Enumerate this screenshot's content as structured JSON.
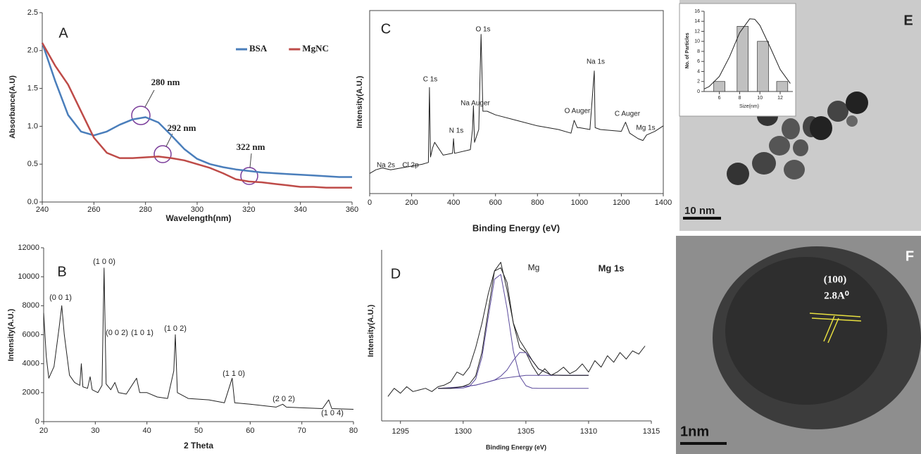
{
  "chart_data": [
    {
      "type": "line",
      "label": "A",
      "xlabel": "Wavelength(nm)",
      "ylabel": "Absorbance(A.U)",
      "legend": "top right",
      "x": [
        240,
        245,
        250,
        255,
        260,
        265,
        270,
        275,
        280,
        285,
        290,
        295,
        300,
        305,
        310,
        315,
        320,
        325,
        330,
        335,
        340,
        345,
        350,
        355,
        360
      ],
      "series": [
        {
          "name": "BSA",
          "color": "#4a7ebb",
          "values": [
            2.1,
            1.6,
            1.15,
            0.93,
            0.88,
            0.93,
            1.02,
            1.09,
            1.12,
            1.05,
            0.88,
            0.7,
            0.57,
            0.5,
            0.46,
            0.43,
            0.41,
            0.39,
            0.38,
            0.37,
            0.36,
            0.35,
            0.34,
            0.33,
            0.33
          ]
        },
        {
          "name": "MgNC",
          "color": "#be4b48",
          "values": [
            2.1,
            1.8,
            1.55,
            1.2,
            0.85,
            0.65,
            0.58,
            0.58,
            0.59,
            0.6,
            0.58,
            0.55,
            0.5,
            0.45,
            0.38,
            0.3,
            0.27,
            0.26,
            0.24,
            0.22,
            0.2,
            0.2,
            0.19,
            0.19,
            0.19
          ]
        }
      ],
      "xlim": [
        240,
        360
      ],
      "xticks": [
        240,
        260,
        280,
        300,
        320,
        340,
        360
      ],
      "ylim": [
        0,
        2.5
      ],
      "yticks": [
        {
          "value": 0,
          "label": "0.0"
        },
        0.5,
        {
          "value": 1,
          "label": "1.0"
        },
        1.5,
        {
          "value": 2,
          "label": "2.0"
        },
        2.5
      ],
      "annotations": [
        "280 nm",
        "292 nm",
        "322 nm"
      ]
    },
    {
      "type": "line",
      "label": "B",
      "xlabel": "2 Theta",
      "ylabel": "Intensity(A.U.)",
      "x": [
        20,
        20.5,
        21,
        22,
        23,
        23.5,
        24,
        25,
        26,
        27,
        27.3,
        27.6,
        28.5,
        29,
        29.4,
        30.5,
        31.3,
        31.7,
        32.1,
        33,
        33.8,
        34.5,
        36,
        38,
        38.6,
        40,
        42,
        44,
        45.2,
        45.5,
        45.9,
        48,
        52,
        55,
        56.5,
        57,
        60,
        65,
        66.3,
        67,
        70,
        74,
        75.2,
        75.8,
        80
      ],
      "series": [
        {
          "color": "#222222",
          "values": [
            7500,
            4500,
            3000,
            3800,
            6500,
            8000,
            6000,
            3200,
            2700,
            2500,
            4000,
            2400,
            2300,
            3100,
            2200,
            2000,
            2500,
            10600,
            2600,
            2200,
            2700,
            2000,
            1900,
            3000,
            2000,
            2000,
            1700,
            1600,
            3500,
            6000,
            2000,
            1600,
            1500,
            1300,
            3000,
            1300,
            1200,
            1000,
            1200,
            1000,
            950,
            900,
            1500,
            900,
            850
          ]
        }
      ],
      "xlim": [
        20,
        80
      ],
      "xticks": [
        20,
        30,
        40,
        50,
        60,
        70,
        80
      ],
      "ylim": [
        0,
        12000
      ],
      "yticks": [
        0,
        2000,
        4000,
        6000,
        8000,
        10000,
        12000
      ],
      "annotations": [
        "(0 0 1)",
        "(1 0 0)",
        "(0 0 2)",
        "(1 0 1)",
        "(1 0 2)",
        "(1 1 0)",
        "(2 0 2)",
        "(1 0 4)"
      ]
    },
    {
      "type": "line",
      "label": "C",
      "xlabel": "Binding Energy (eV)",
      "ylabel": "Intensity(A.U.)",
      "x": [
        0,
        30,
        60,
        100,
        150,
        200,
        250,
        280,
        285,
        290,
        300,
        310,
        350,
        395,
        400,
        405,
        480,
        490,
        495,
        500,
        520,
        531,
        540,
        560,
        600,
        700,
        800,
        900,
        960,
        975,
        990,
        1000,
        1050,
        1071,
        1075,
        1100,
        1200,
        1220,
        1240,
        1280,
        1303,
        1320,
        1360,
        1400
      ],
      "series": [
        {
          "color": "#222222",
          "values": [
            11,
            13,
            14,
            13,
            14,
            15,
            16,
            17,
            58,
            20,
            25,
            28,
            21,
            22,
            30,
            22,
            24,
            35,
            48,
            28,
            35,
            87,
            45,
            45,
            43,
            40,
            37,
            35,
            33,
            40,
            36,
            36,
            35,
            67,
            36,
            35,
            34,
            39,
            33,
            30,
            29,
            32,
            34,
            37
          ]
        }
      ],
      "xlim": [
        0,
        1400
      ],
      "xticks": [
        0,
        200,
        400,
        600,
        800,
        1000,
        1200,
        1400
      ],
      "ylim": [
        0,
        100
      ],
      "annotations": [
        "Na 2s",
        "Cl 2p",
        "C 1s",
        "N 1s",
        "Na Auger",
        "O 1s",
        "Na 1s",
        "O Auger",
        "C Auger",
        "Mg 1s"
      ]
    },
    {
      "type": "line",
      "label": "D",
      "title": "Mg 1s",
      "xlabel": "Binding Energy (eV)",
      "ylabel": "Intensity(A.U.)",
      "series": [
        {
          "color": "#222222",
          "x": [
            1294,
            1294.5,
            1295,
            1295.5,
            1296,
            1296.5,
            1297,
            1297.5,
            1298,
            1298.5,
            1299,
            1299.5,
            1300,
            1300.5,
            1301,
            1301.5,
            1302,
            1302.5,
            1303,
            1303.5,
            1304,
            1304.5,
            1305,
            1305.5,
            1306,
            1306.5,
            1307,
            1307.5,
            1308,
            1308.5,
            1309,
            1309.5,
            1310,
            1310.5,
            1311,
            1311.5,
            1312,
            1312.5,
            1313,
            1313.5,
            1314,
            1314.5
          ],
          "values": [
            15,
            20,
            17,
            21,
            18,
            19,
            20,
            18,
            21,
            22,
            24,
            30,
            28,
            33,
            45,
            60,
            78,
            92,
            94,
            85,
            60,
            45,
            42,
            34,
            28,
            32,
            28,
            30,
            33,
            29,
            31,
            35,
            30,
            37,
            33,
            40,
            36,
            42,
            38,
            43,
            41,
            46
          ]
        },
        {
          "color": "#5b4a9c",
          "x": [
            1298,
            1299,
            1300,
            1300.5,
            1301,
            1301.5,
            1302,
            1302.5,
            1303,
            1303.5,
            1304,
            1304.5,
            1305,
            1305.5,
            1306,
            1307,
            1308,
            1310
          ],
          "values": [
            20,
            20,
            20.2,
            21.2,
            25.7,
            39.2,
            63.7,
            87,
            89.9,
            69,
            43,
            27.5,
            21.6,
            20.1,
            20,
            20,
            20,
            20
          ]
        },
        {
          "color": "#5b4a9c",
          "x": [
            1298,
            1299,
            1300,
            1300.5,
            1301,
            1301.5,
            1302,
            1302.5,
            1303,
            1303.5,
            1304,
            1304.5,
            1305,
            1305.5,
            1306,
            1307,
            1308,
            1310
          ],
          "values": [
            20,
            20,
            21,
            21.5,
            22,
            23,
            24,
            25.1,
            27.5,
            31.3,
            37.2,
            42,
            41.9,
            37.1,
            32,
            28.2,
            28,
            28
          ]
        },
        {
          "color": "#5b4a9c",
          "x": [
            1298,
            1299,
            1300,
            1300.5,
            1301,
            1301.5,
            1302,
            1302.5,
            1303,
            1303.5,
            1304,
            1304.5,
            1305,
            1305.5,
            1306,
            1307,
            1308,
            1310
          ],
          "values": [
            20,
            20.5,
            21,
            21.5,
            22,
            23,
            24,
            25,
            26,
            26.5,
            27,
            27.5,
            28,
            28,
            28,
            28,
            28,
            28
          ]
        },
        {
          "color": "#222222",
          "x": [
            1298,
            1299,
            1300,
            1300.5,
            1301,
            1301.5,
            1302,
            1302.5,
            1303,
            1303.5,
            1304,
            1304.5,
            1305,
            1305.5,
            1306,
            1307,
            1308,
            1310
          ],
          "values": [
            20,
            20,
            21.2,
            22.7,
            27.7,
            42.2,
            67.7,
            92.1,
            97.4,
            80.3,
            60.2,
            49.5,
            43.5,
            37.2,
            32,
            28.2,
            28,
            28
          ]
        }
      ],
      "xlim": [
        1293.5,
        1315
      ],
      "xticks": [
        1295,
        1300,
        1305,
        1310,
        1315
      ],
      "ylim": [
        0,
        105
      ],
      "annotations": [
        "Mg"
      ]
    },
    {
      "type": "bar",
      "xlabel": "Size(nm)",
      "ylabel": "No. of Particles",
      "color": "#c0c0c0",
      "x": [
        6,
        8.3,
        10.3,
        12.2
      ],
      "values": [
        2,
        13,
        10,
        2
      ],
      "fit": {
        "x": [
          4.5,
          5,
          6,
          7,
          8,
          9,
          9.5,
          10,
          11,
          12,
          13
        ],
        "values": [
          0.5,
          1,
          3,
          6.9,
          11.7,
          14.5,
          14.4,
          13.2,
          8.9,
          4.4,
          1.6
        ]
      },
      "xlim": [
        4.5,
        13.25
      ],
      "xticks": [
        6,
        8,
        10,
        12
      ],
      "ylim": [
        0,
        16
      ],
      "yticks": [
        0,
        2,
        4,
        6,
        8,
        10,
        12,
        14,
        16
      ]
    }
  ],
  "images": {
    "e": {
      "label": "E",
      "scale": "10 nm"
    },
    "f": {
      "label": "F",
      "scale": "1nm",
      "plane": "(100)",
      "spacing": "2.8A⁰"
    }
  }
}
